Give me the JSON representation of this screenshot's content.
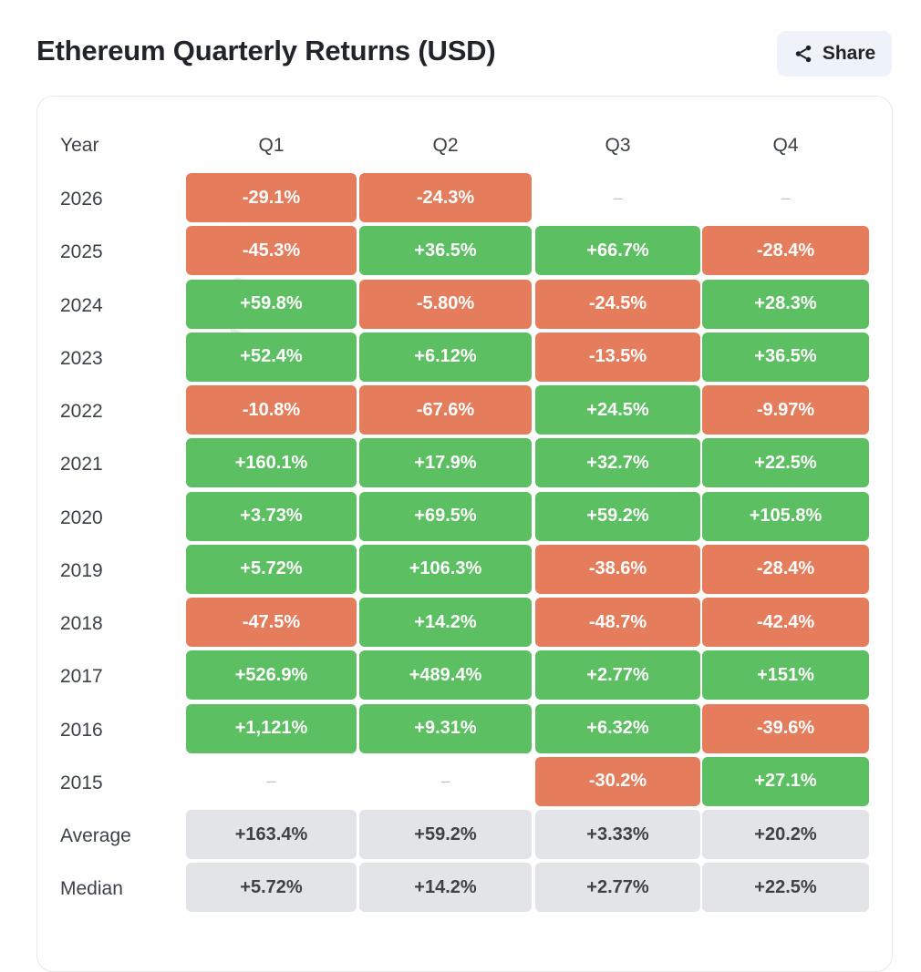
{
  "title": "Ethereum Quarterly Returns (USD)",
  "share": {
    "label": "Share",
    "icon": "share-icon"
  },
  "watermark": "cryptorank",
  "colors": {
    "positive": "#5cbf62",
    "negative": "#e57d5d",
    "summary": "#e3e4e8"
  },
  "chart_data": {
    "type": "table",
    "title": "Ethereum Quarterly Returns (USD)",
    "columns": [
      "Year",
      "Q1",
      "Q2",
      "Q3",
      "Q4"
    ],
    "rows": [
      {
        "year": "2026",
        "values": [
          "-29.1%",
          "-24.3%",
          "–",
          "–"
        ]
      },
      {
        "year": "2025",
        "values": [
          "-45.3%",
          "+36.5%",
          "+66.7%",
          "-28.4%"
        ]
      },
      {
        "year": "2024",
        "values": [
          "+59.8%",
          "-5.80%",
          "-24.5%",
          "+28.3%"
        ]
      },
      {
        "year": "2023",
        "values": [
          "+52.4%",
          "+6.12%",
          "-13.5%",
          "+36.5%"
        ]
      },
      {
        "year": "2022",
        "values": [
          "-10.8%",
          "-67.6%",
          "+24.5%",
          "-9.97%"
        ]
      },
      {
        "year": "2021",
        "values": [
          "+160.1%",
          "+17.9%",
          "+32.7%",
          "+22.5%"
        ]
      },
      {
        "year": "2020",
        "values": [
          "+3.73%",
          "+69.5%",
          "+59.2%",
          "+105.8%"
        ]
      },
      {
        "year": "2019",
        "values": [
          "+5.72%",
          "+106.3%",
          "-38.6%",
          "-28.4%"
        ]
      },
      {
        "year": "2018",
        "values": [
          "-47.5%",
          "+14.2%",
          "-48.7%",
          "-42.4%"
        ]
      },
      {
        "year": "2017",
        "values": [
          "+526.9%",
          "+489.4%",
          "+2.77%",
          "+151%"
        ]
      },
      {
        "year": "2016",
        "values": [
          "+1,121%",
          "+9.31%",
          "+6.32%",
          "-39.6%"
        ]
      },
      {
        "year": "2015",
        "values": [
          "–",
          "–",
          "-30.2%",
          "+27.1%"
        ]
      }
    ],
    "summary": [
      {
        "label": "Average",
        "values": [
          "+163.4%",
          "+59.2%",
          "+3.33%",
          "+20.2%"
        ]
      },
      {
        "label": "Median",
        "values": [
          "+5.72%",
          "+14.2%",
          "+2.77%",
          "+22.5%"
        ]
      }
    ]
  }
}
